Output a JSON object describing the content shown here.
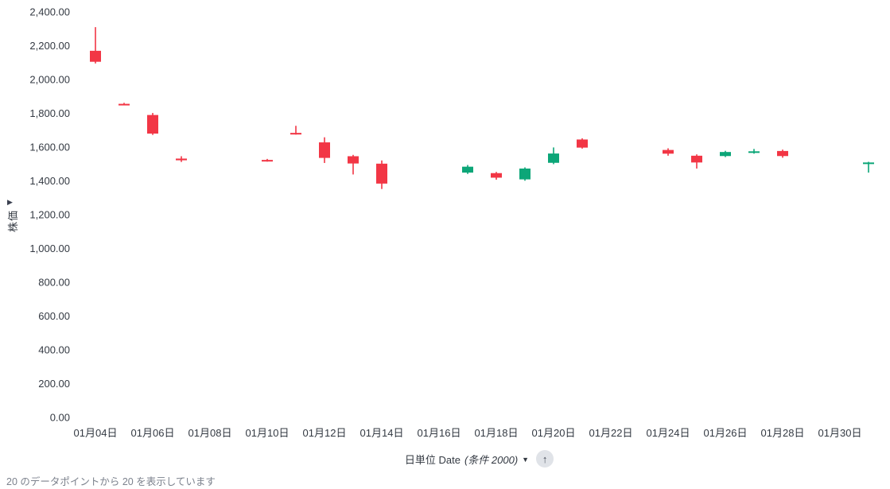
{
  "y_axis": {
    "title": "株価",
    "collapse_icon": "▶"
  },
  "x_axis_control": {
    "label": "日単位 Date",
    "condition": "(条件 2000)",
    "dropdown_icon": "▼",
    "sort_icon": "↑"
  },
  "footer": {
    "summary": "20  のデータポイントから 20 を表示しています"
  },
  "chart_data": {
    "type": "candlestick",
    "title": "",
    "ylabel": "株価",
    "xlabel": "日単位 Date (条件 2000)",
    "ylim": [
      0,
      2400
    ],
    "y_tick_step": 200,
    "grid": false,
    "legend": "none",
    "colors": {
      "up": "#0ca678",
      "down": "#f23645"
    },
    "y_ticks": [
      {
        "value": 0,
        "label": "0.00"
      },
      {
        "value": 200,
        "label": "200.00"
      },
      {
        "value": 400,
        "label": "400.00"
      },
      {
        "value": 600,
        "label": "600.00"
      },
      {
        "value": 800,
        "label": "800.00"
      },
      {
        "value": 1000,
        "label": "1,000.00"
      },
      {
        "value": 1200,
        "label": "1,200.00"
      },
      {
        "value": 1400,
        "label": "1,400.00"
      },
      {
        "value": 1600,
        "label": "1,600.00"
      },
      {
        "value": 1800,
        "label": "1,800.00"
      },
      {
        "value": 2000,
        "label": "2,000.00"
      },
      {
        "value": 2200,
        "label": "2,200.00"
      },
      {
        "value": 2400,
        "label": "2,400.00"
      }
    ],
    "x_ticks": [
      {
        "day": 4,
        "label": "01月04日"
      },
      {
        "day": 6,
        "label": "01月06日"
      },
      {
        "day": 8,
        "label": "01月08日"
      },
      {
        "day": 10,
        "label": "01月10日"
      },
      {
        "day": 12,
        "label": "01月12日"
      },
      {
        "day": 14,
        "label": "01月14日"
      },
      {
        "day": 16,
        "label": "01月16日"
      },
      {
        "day": 18,
        "label": "01月18日"
      },
      {
        "day": 20,
        "label": "01月20日"
      },
      {
        "day": 22,
        "label": "01月22日"
      },
      {
        "day": 24,
        "label": "01月24日"
      },
      {
        "day": 26,
        "label": "01月26日"
      },
      {
        "day": 28,
        "label": "01月28日"
      },
      {
        "day": 30,
        "label": "01月30日"
      }
    ],
    "candles": [
      {
        "day": 4,
        "date": "01月04日",
        "open": 2170,
        "high": 2310,
        "low": 2095,
        "close": 2105
      },
      {
        "day": 5,
        "date": "01月05日",
        "open": 1856,
        "high": 1862,
        "low": 1848,
        "close": 1852
      },
      {
        "day": 6,
        "date": "01月06日",
        "open": 1790,
        "high": 1802,
        "low": 1672,
        "close": 1680
      },
      {
        "day": 7,
        "date": "01月07日",
        "open": 1532,
        "high": 1546,
        "low": 1512,
        "close": 1522
      },
      {
        "day": 10,
        "date": "01月10日",
        "open": 1524,
        "high": 1530,
        "low": 1514,
        "close": 1519
      },
      {
        "day": 11,
        "date": "01月11日",
        "open": 1684,
        "high": 1726,
        "low": 1674,
        "close": 1678
      },
      {
        "day": 12,
        "date": "01月12日",
        "open": 1628,
        "high": 1658,
        "low": 1506,
        "close": 1536
      },
      {
        "day": 13,
        "date": "01月13日",
        "open": 1546,
        "high": 1554,
        "low": 1438,
        "close": 1503
      },
      {
        "day": 14,
        "date": "01月14日",
        "open": 1502,
        "high": 1521,
        "low": 1352,
        "close": 1384
      },
      {
        "day": 17,
        "date": "01月17日",
        "open": 1449,
        "high": 1494,
        "low": 1441,
        "close": 1484
      },
      {
        "day": 18,
        "date": "01月18日",
        "open": 1446,
        "high": 1453,
        "low": 1407,
        "close": 1419
      },
      {
        "day": 19,
        "date": "01月19日",
        "open": 1409,
        "high": 1480,
        "low": 1401,
        "close": 1473
      },
      {
        "day": 20,
        "date": "01月20日",
        "open": 1507,
        "high": 1598,
        "low": 1499,
        "close": 1562
      },
      {
        "day": 21,
        "date": "01月21日",
        "open": 1645,
        "high": 1652,
        "low": 1591,
        "close": 1597
      },
      {
        "day": 24,
        "date": "01月24日",
        "open": 1583,
        "high": 1593,
        "low": 1549,
        "close": 1561
      },
      {
        "day": 25,
        "date": "01月25日",
        "open": 1549,
        "high": 1557,
        "low": 1473,
        "close": 1509
      },
      {
        "day": 26,
        "date": "01月26日",
        "open": 1547,
        "high": 1578,
        "low": 1541,
        "close": 1571
      },
      {
        "day": 27,
        "date": "01月27日",
        "open": 1570,
        "high": 1589,
        "low": 1561,
        "close": 1575
      },
      {
        "day": 28,
        "date": "01月28日",
        "open": 1577,
        "high": 1585,
        "low": 1537,
        "close": 1547
      },
      {
        "day": 31,
        "date": "01月31日",
        "open": 1503,
        "high": 1513,
        "low": 1449,
        "close": 1509
      }
    ]
  }
}
